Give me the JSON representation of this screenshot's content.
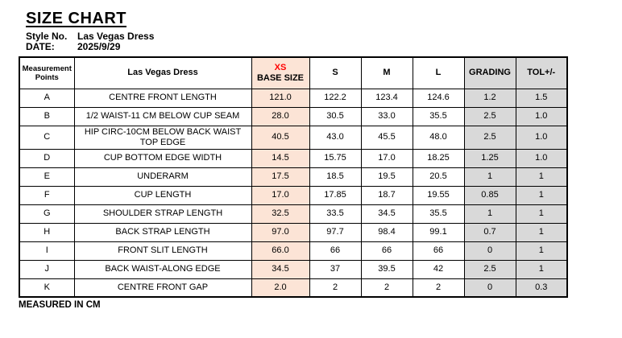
{
  "page": {
    "title": "SIZE CHART",
    "style_no_label": "Style No.",
    "style_no_value": "Las Vegas Dress",
    "date_label": "DATE:",
    "date_value": "2025/9/29",
    "footer_note": "MEASURED IN CM"
  },
  "colors": {
    "base_size_fill": "#FCE4D6",
    "grading_tol_fill": "#D9D9D9",
    "base_size_text": "#FF0000",
    "border": "#000000"
  },
  "table": {
    "columns": {
      "measurement_points": "Measurement Points",
      "product_name": "Las Vegas Dress",
      "base_size_line1": "XS",
      "base_size_line2": "BASE SIZE",
      "s": "S",
      "m": "M",
      "l": "L",
      "grading": "GRADING",
      "tolerance": "TOL+/-"
    },
    "rows": [
      {
        "point": "A",
        "name": "CENTRE FRONT LENGTH",
        "xs": "121.0",
        "s": "122.2",
        "m": "123.4",
        "l": "124.6",
        "grading": "1.2",
        "tol": "1.5"
      },
      {
        "point": "B",
        "name": "1/2 WAIST-11 CM BELOW CUP SEAM",
        "xs": "28.0",
        "s": "30.5",
        "m": "33.0",
        "l": "35.5",
        "grading": "2.5",
        "tol": "1.0"
      },
      {
        "point": "C",
        "name": "HIP CIRC-10CM BELOW BACK WAIST TOP EDGE",
        "xs": "40.5",
        "s": "43.0",
        "m": "45.5",
        "l": "48.0",
        "grading": "2.5",
        "tol": "1.0"
      },
      {
        "point": "D",
        "name": "CUP BOTTOM EDGE WIDTH",
        "xs": "14.5",
        "s": "15.75",
        "m": "17.0",
        "l": "18.25",
        "grading": "1.25",
        "tol": "1.0"
      },
      {
        "point": "E",
        "name": "UNDERARM",
        "xs": "17.5",
        "s": "18.5",
        "m": "19.5",
        "l": "20.5",
        "grading": "1",
        "tol": "1"
      },
      {
        "point": "F",
        "name": "CUP LENGTH",
        "xs": "17.0",
        "s": "17.85",
        "m": "18.7",
        "l": "19.55",
        "grading": "0.85",
        "tol": "1"
      },
      {
        "point": "G",
        "name": "SHOULDER STRAP LENGTH",
        "xs": "32.5",
        "s": "33.5",
        "m": "34.5",
        "l": "35.5",
        "grading": "1",
        "tol": "1"
      },
      {
        "point": "H",
        "name": "BACK STRAP LENGTH",
        "xs": "97.0",
        "s": "97.7",
        "m": "98.4",
        "l": "99.1",
        "grading": "0.7",
        "tol": "1"
      },
      {
        "point": "I",
        "name": "FRONT SLIT LENGTH",
        "xs": "66.0",
        "s": "66",
        "m": "66",
        "l": "66",
        "grading": "0",
        "tol": "1"
      },
      {
        "point": "J",
        "name": "BACK WAIST-ALONG EDGE",
        "xs": "34.5",
        "s": "37",
        "m": "39.5",
        "l": "42",
        "grading": "2.5",
        "tol": "1"
      },
      {
        "point": "K",
        "name": "CENTRE FRONT GAP",
        "xs": "2.0",
        "s": "2",
        "m": "2",
        "l": "2",
        "grading": "0",
        "tol": "0.3"
      }
    ]
  }
}
